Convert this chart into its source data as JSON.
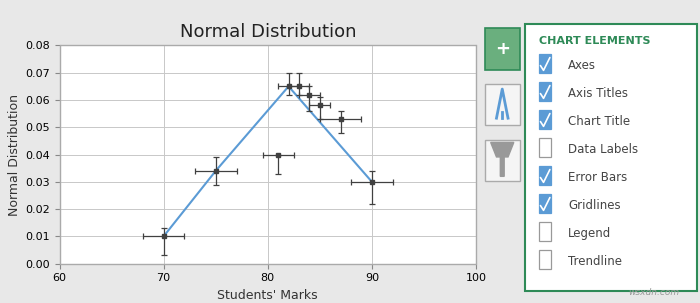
{
  "title": "Normal Distribution",
  "xlabel": "Students' Marks",
  "ylabel": "Normal Distribution",
  "xlim": [
    60,
    100
  ],
  "ylim": [
    0,
    0.08
  ],
  "yticks": [
    0,
    0.01,
    0.02,
    0.03,
    0.04,
    0.05,
    0.06,
    0.07,
    0.08
  ],
  "xticks": [
    60,
    70,
    80,
    90,
    100
  ],
  "x": [
    70,
    75,
    81,
    82,
    83,
    84,
    85,
    87,
    90
  ],
  "y": [
    0.01,
    0.034,
    0.04,
    0.065,
    0.065,
    0.062,
    0.058,
    0.053,
    0.03
  ],
  "xerr": [
    2.0,
    2.0,
    1.5,
    1.0,
    1.0,
    1.0,
    1.0,
    2.0,
    2.0
  ],
  "yerr_pos": [
    0.003,
    0.005,
    0.0,
    0.005,
    0.005,
    0.003,
    0.003,
    0.003,
    0.004
  ],
  "yerr_neg": [
    0.007,
    0.005,
    0.007,
    0.003,
    0.003,
    0.006,
    0.005,
    0.005,
    0.008
  ],
  "line_x": [
    70,
    75,
    82,
    90
  ],
  "line_y": [
    0.01,
    0.034,
    0.065,
    0.03
  ],
  "line_color": "#5B9BD5",
  "marker_color": "#404040",
  "error_color": "#404040",
  "plot_bg": "#FFFFFF",
  "outer_bg": "#E8E8E8",
  "grid_color": "#C8C8C8",
  "title_fontsize": 13,
  "label_fontsize": 9,
  "tick_fontsize": 8,
  "chart_elements_title": "CHART ELEMENTS",
  "chart_elements_items": [
    {
      "label": "Axes",
      "checked": true
    },
    {
      "label": "Axis Titles",
      "checked": true
    },
    {
      "label": "Chart Title",
      "checked": true
    },
    {
      "label": "Data Labels",
      "checked": false
    },
    {
      "label": "Error Bars",
      "checked": true
    },
    {
      "label": "Gridlines",
      "checked": true
    },
    {
      "label": "Legend",
      "checked": false
    },
    {
      "label": "Trendline",
      "checked": false
    }
  ],
  "checkbox_checked_color": "#5B9BD5",
  "panel_border_color": "#2E8A57",
  "panel_text_color": "#2E8A57",
  "plus_bg": "#6AAF7E",
  "icon_border": "#AAAAAA",
  "icon_bg": "#F5F5F5"
}
